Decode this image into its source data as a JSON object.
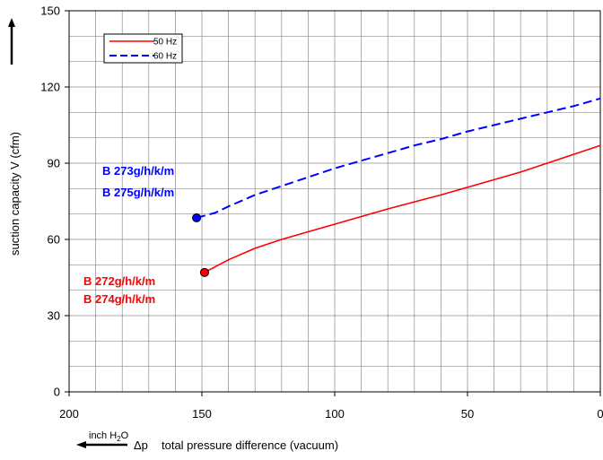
{
  "chart_data": {
    "type": "line",
    "xlabel": "total pressure difference (vacuum)",
    "xlabel_symbol": "Δp",
    "x_unit_main": "inch H",
    "x_unit_sub": "2",
    "x_unit_end": "O",
    "ylabel": "suction capacity V (cfm)",
    "xlim": [
      200,
      0
    ],
    "ylim": [
      0,
      150
    ],
    "x_ticks": [
      200,
      150,
      100,
      50,
      0
    ],
    "y_ticks": [
      0,
      30,
      60,
      90,
      120,
      150
    ],
    "x_tick_labels": [
      "200",
      "150",
      "100",
      "50",
      "0"
    ],
    "y_tick_labels": [
      "0",
      "30",
      "60",
      "90",
      "120",
      "150"
    ],
    "grid": true,
    "legend_position": "top-left",
    "series": [
      {
        "name": "50 Hz",
        "color": "#ff0000",
        "style": "solid",
        "marker_at_start": true,
        "x": [
          149,
          140,
          130,
          120,
          110,
          100,
          90,
          80,
          70,
          60,
          50,
          40,
          30,
          20,
          10,
          0
        ],
        "y": [
          47,
          52,
          56.5,
          60,
          63,
          66,
          69,
          72,
          74.8,
          77.5,
          80.5,
          83.5,
          86.5,
          90,
          93.5,
          97
        ]
      },
      {
        "name": "60 Hz",
        "color": "#0000ff",
        "style": "dashed",
        "marker_at_start": true,
        "x": [
          152,
          145,
          140,
          130,
          120,
          110,
          100,
          90,
          80,
          70,
          60,
          50,
          40,
          30,
          20,
          10,
          0
        ],
        "y": [
          68.5,
          70.5,
          73,
          77.5,
          81,
          84.5,
          88,
          91,
          94,
          97,
          99.5,
          102.5,
          105,
          107.5,
          110,
          112.5,
          115.5
        ]
      }
    ],
    "annotations": [
      {
        "text": "B 273g/h/k/m",
        "color": "#0000ff"
      },
      {
        "text": "B 275g/h/k/m",
        "color": "#0000ff"
      },
      {
        "text": "B 272g/h/k/m",
        "color": "#ff0000"
      },
      {
        "text": "B 274g/h/k/m",
        "color": "#ff0000"
      }
    ]
  }
}
